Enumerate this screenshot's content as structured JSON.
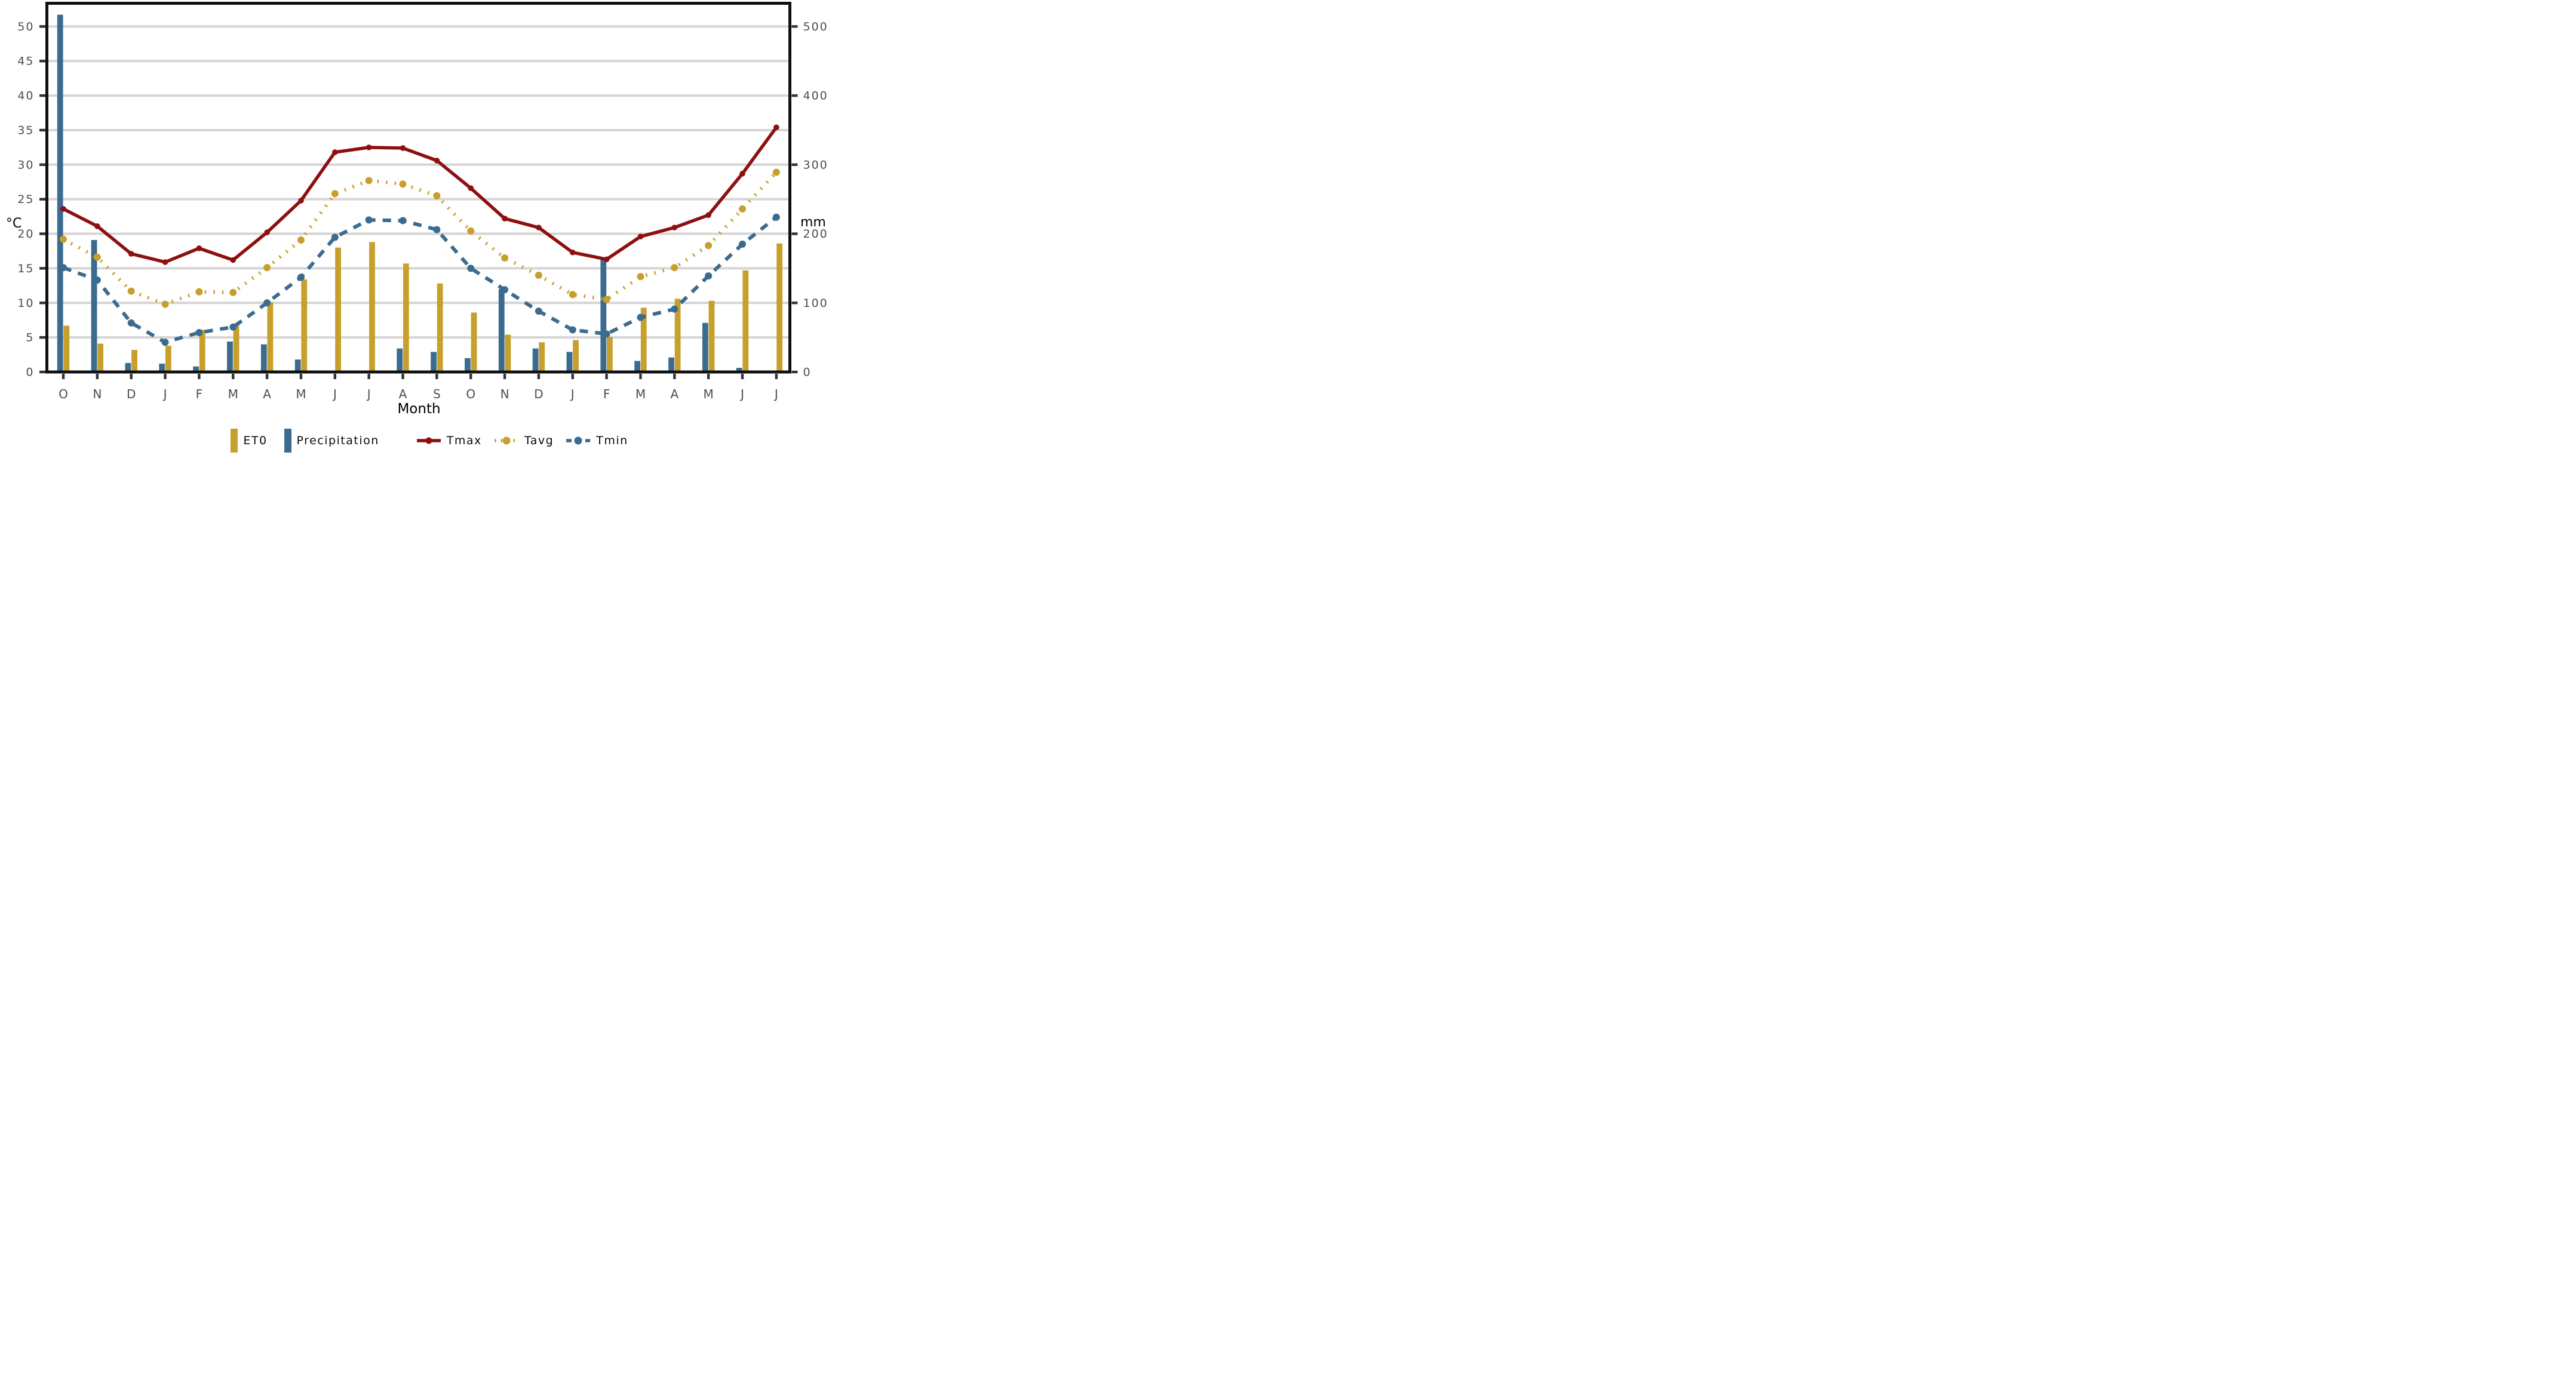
{
  "chart_data": {
    "type": "bar-line-combo",
    "x_title": "Month",
    "grid": "horizontal",
    "legend_position": "bottom",
    "colors": {
      "grid": "#d5d5d5",
      "axis_border": "#111111",
      "tick_mark": "#333333",
      "tick_label": "#4d4d4d",
      "gold": "#c79f2c",
      "blue": "#3b6b8f",
      "red": "#8e0f0f"
    },
    "left_axis": {
      "title": "°C",
      "min": 0,
      "max": 50,
      "tick_step": 5,
      "ticks": [
        "0",
        "5",
        "10",
        "15",
        "20",
        "25",
        "30",
        "35",
        "40",
        "45",
        "50"
      ]
    },
    "right_axis": {
      "title": "mm",
      "min": 0,
      "max": 500,
      "tick_step": 100,
      "scale_to_left": 0.1,
      "ticks": [
        "0",
        "100",
        "200",
        "300",
        "400",
        "500"
      ]
    },
    "categories": [
      "O",
      "N",
      "D",
      "J",
      "F",
      "M",
      "A",
      "M",
      "J",
      "J",
      "A",
      "S",
      "O",
      "N",
      "D",
      "J",
      "F",
      "M",
      "A",
      "M",
      "J",
      "J"
    ],
    "bars": [
      {
        "name": "ET0",
        "axis": "mm",
        "slot": "right",
        "color": "#c79f2c",
        "values_mm": [
          67,
          41,
          32,
          38,
          61,
          68,
          101,
          134,
          180,
          188,
          157,
          128,
          86,
          54,
          43,
          46,
          51,
          93,
          106,
          103,
          147,
          186
        ]
      },
      {
        "name": "Precipitation",
        "axis": "mm",
        "slot": "left",
        "color": "#3b6b8f",
        "values_mm": [
          517,
          191,
          13,
          12,
          8,
          44,
          40,
          18,
          0,
          0,
          34,
          29,
          20,
          120,
          34,
          29,
          165,
          16,
          21,
          71,
          6,
          0
        ]
      }
    ],
    "lines": [
      {
        "name": "Tmax",
        "axis": "°C",
        "style": "solid",
        "color": "#8e0f0f",
        "values_c": [
          23.6,
          21.1,
          17.1,
          15.9,
          17.9,
          16.2,
          20.2,
          24.8,
          31.8,
          32.5,
          32.4,
          30.6,
          26.6,
          22.2,
          20.9,
          17.3,
          16.3,
          19.6,
          20.9,
          22.7,
          28.7,
          35.4
        ]
      },
      {
        "name": "Tavg",
        "axis": "°C",
        "style": "dotted",
        "color": "#c79f2c",
        "values_c": [
          19.2,
          16.6,
          11.7,
          9.8,
          11.6,
          11.5,
          15.1,
          19.1,
          25.8,
          27.7,
          27.2,
          25.5,
          20.4,
          16.5,
          14.0,
          11.2,
          10.5,
          13.8,
          15.1,
          18.3,
          23.6,
          28.9
        ]
      },
      {
        "name": "Tmin",
        "axis": "°C",
        "style": "dashed",
        "color": "#3b6b8f",
        "values_c": [
          15.1,
          13.3,
          7.1,
          4.3,
          5.7,
          6.5,
          10.0,
          13.7,
          19.5,
          22.0,
          21.9,
          20.6,
          15.0,
          11.9,
          8.8,
          6.1,
          5.5,
          7.9,
          9.1,
          13.9,
          18.5,
          22.4
        ]
      }
    ]
  }
}
